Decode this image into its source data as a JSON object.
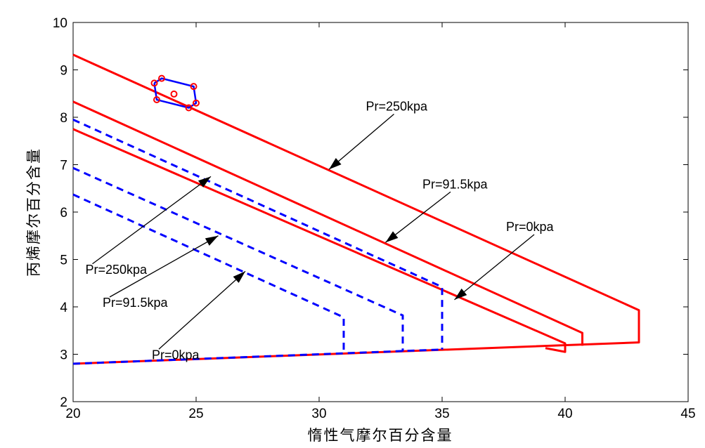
{
  "chart_data": {
    "type": "line",
    "xlabel": "惰性气摩尔百分含量",
    "ylabel": "丙烯摩尔百分含量",
    "xlim": [
      20,
      45
    ],
    "ylim": [
      2,
      10
    ],
    "xticks": [
      20,
      25,
      30,
      35,
      40,
      45
    ],
    "yticks": [
      2,
      3,
      4,
      5,
      6,
      7,
      8,
      9,
      10
    ],
    "grid": false,
    "colors": {
      "red": "#ff0000",
      "blue": "#0000ff",
      "black": "#000000"
    },
    "series": [
      {
        "color": "#ff0000",
        "style": "solid",
        "x": [
          20,
          43,
          43,
          43.0,
          20
        ],
        "y": [
          9.32,
          3.93,
          3.25,
          3.25,
          2.8
        ]
      },
      {
        "color": "#ff0000",
        "style": "solid",
        "x": [
          20,
          40.7,
          40.7
        ],
        "y": [
          8.33,
          3.45,
          3.18
        ]
      },
      {
        "color": "#ff0000",
        "style": "solid",
        "x": [
          20,
          40.0,
          40.0,
          39.2
        ],
        "y": [
          7.75,
          3.23,
          3.05,
          3.13
        ]
      },
      {
        "color": "#0000ff",
        "style": "dashed",
        "x": [
          20,
          35.0,
          35.0
        ],
        "y": [
          7.95,
          4.42,
          3.1
        ]
      },
      {
        "color": "#0000ff",
        "style": "dashed",
        "x": [
          20,
          33.4,
          33.4
        ],
        "y": [
          6.93,
          3.82,
          3.06
        ]
      },
      {
        "color": "#0000ff",
        "style": "dashed",
        "x": [
          20,
          31.0,
          31.0
        ],
        "y": [
          6.37,
          3.78,
          3.03
        ]
      },
      {
        "color": "#0000ff",
        "style": "dashed",
        "x": [
          20,
          35.0
        ],
        "y": [
          2.8,
          3.1
        ]
      }
    ],
    "points": {
      "polygon_x": [
        23.3,
        23.6,
        24.9,
        25.0,
        24.7,
        23.4,
        23.3
      ],
      "polygon_y": [
        8.72,
        8.82,
        8.65,
        8.3,
        8.2,
        8.37,
        8.72
      ],
      "center": [
        24.1,
        8.49
      ]
    },
    "annotations": [
      {
        "text": "Pr=250kpa",
        "tx": 31.9,
        "ty": 8.14,
        "x": 30.4,
        "y": 6.9
      },
      {
        "text": "Pr=91.5kpa",
        "tx": 34.2,
        "ty": 6.5,
        "x": 32.7,
        "y": 5.36
      },
      {
        "text": "Pr=0kpa",
        "tx": 37.6,
        "ty": 5.6,
        "x": 35.5,
        "y": 4.15
      },
      {
        "text": "Pr=250kpa",
        "tx": 20.5,
        "ty": 4.7,
        "x": 25.6,
        "y": 6.75
      },
      {
        "text": "Pr=91.5kpa",
        "tx": 21.2,
        "ty": 4.0,
        "x": 25.9,
        "y": 5.5
      },
      {
        "text": "Pr=0kpa",
        "tx": 23.2,
        "ty": 2.9,
        "x": 27.0,
        "y": 4.75
      }
    ]
  }
}
